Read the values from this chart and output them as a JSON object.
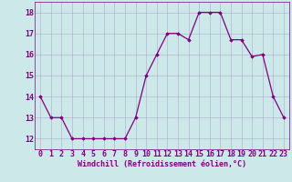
{
  "x": [
    0,
    1,
    2,
    3,
    4,
    5,
    6,
    7,
    8,
    9,
    10,
    11,
    12,
    13,
    14,
    15,
    16,
    17,
    18,
    19,
    20,
    21,
    22,
    23
  ],
  "y": [
    14,
    13,
    13,
    12,
    12,
    12,
    12,
    12,
    12,
    13,
    15,
    16,
    17,
    17,
    16.7,
    18,
    18,
    18,
    16.7,
    16.7,
    15.9,
    16,
    14,
    13
  ],
  "line_color": "#800080",
  "marker": "D",
  "marker_size": 1.8,
  "line_width": 0.9,
  "bg_color": "#cce8e8",
  "grid_color": "#aaaacc",
  "xlabel": "Windchill (Refroidissement éolien,°C)",
  "xlabel_fontsize": 6.0,
  "tick_fontsize": 6.0,
  "ylim": [
    11.5,
    18.5
  ],
  "yticks": [
    12,
    13,
    14,
    15,
    16,
    17,
    18
  ],
  "xlim": [
    -0.5,
    23.5
  ],
  "xticks": [
    0,
    1,
    2,
    3,
    4,
    5,
    6,
    7,
    8,
    9,
    10,
    11,
    12,
    13,
    14,
    15,
    16,
    17,
    18,
    19,
    20,
    21,
    22,
    23
  ]
}
